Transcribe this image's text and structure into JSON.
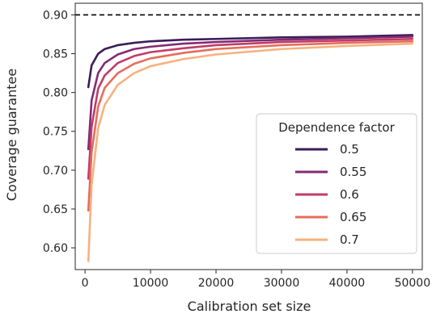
{
  "chart_data": {
    "type": "line",
    "xlabel": "Calibration set size",
    "ylabel": "Coverage guarantee",
    "xlim": [
      -1500,
      51500
    ],
    "ylim": [
      0.572,
      0.915
    ],
    "x_ticks": [
      0,
      10000,
      20000,
      30000,
      40000,
      50000
    ],
    "x_tick_labels": [
      "0",
      "10000",
      "20000",
      "30000",
      "40000",
      "50000"
    ],
    "y_ticks": [
      0.6,
      0.65,
      0.7,
      0.75,
      0.8,
      0.85,
      0.9
    ],
    "y_tick_labels": [
      "0.60",
      "0.65",
      "0.70",
      "0.75",
      "0.80",
      "0.85",
      "0.90"
    ],
    "reference_line": {
      "y": 0.9,
      "style": "dashed",
      "color": "#000000"
    },
    "grid": false,
    "legend": {
      "title": "Dependence factor",
      "placement": "lower-right"
    },
    "series": [
      {
        "name": "0.5",
        "color": "#3b1c5a",
        "x": [
          500,
          1000,
          2000,
          3000,
          5000,
          7500,
          10000,
          15000,
          20000,
          30000,
          40000,
          50000
        ],
        "values": [
          0.807,
          0.835,
          0.85,
          0.856,
          0.861,
          0.864,
          0.866,
          0.868,
          0.869,
          0.871,
          0.872,
          0.874
        ]
      },
      {
        "name": "0.55",
        "color": "#832b72",
        "x": [
          500,
          1000,
          2000,
          3000,
          5000,
          7500,
          10000,
          15000,
          20000,
          30000,
          40000,
          50000
        ],
        "values": [
          0.727,
          0.79,
          0.825,
          0.838,
          0.849,
          0.856,
          0.859,
          0.863,
          0.865,
          0.868,
          0.87,
          0.872
        ]
      },
      {
        "name": "0.6",
        "color": "#c23b66",
        "x": [
          500,
          1000,
          2000,
          3000,
          5000,
          7500,
          10000,
          15000,
          20000,
          30000,
          40000,
          50000
        ],
        "values": [
          0.689,
          0.756,
          0.805,
          0.822,
          0.838,
          0.847,
          0.852,
          0.857,
          0.861,
          0.865,
          0.867,
          0.869
        ]
      },
      {
        "name": "0.65",
        "color": "#e56d5b",
        "x": [
          500,
          1000,
          2000,
          3000,
          5000,
          7500,
          10000,
          15000,
          20000,
          30000,
          40000,
          50000
        ],
        "values": [
          0.648,
          0.723,
          0.782,
          0.806,
          0.825,
          0.837,
          0.844,
          0.851,
          0.856,
          0.861,
          0.864,
          0.866
        ]
      },
      {
        "name": "0.7",
        "color": "#f5b27f",
        "x": [
          500,
          1000,
          2000,
          3000,
          5000,
          7500,
          10000,
          15000,
          20000,
          30000,
          40000,
          50000
        ],
        "values": [
          0.583,
          0.681,
          0.754,
          0.784,
          0.81,
          0.825,
          0.834,
          0.843,
          0.849,
          0.856,
          0.86,
          0.863
        ]
      }
    ]
  }
}
